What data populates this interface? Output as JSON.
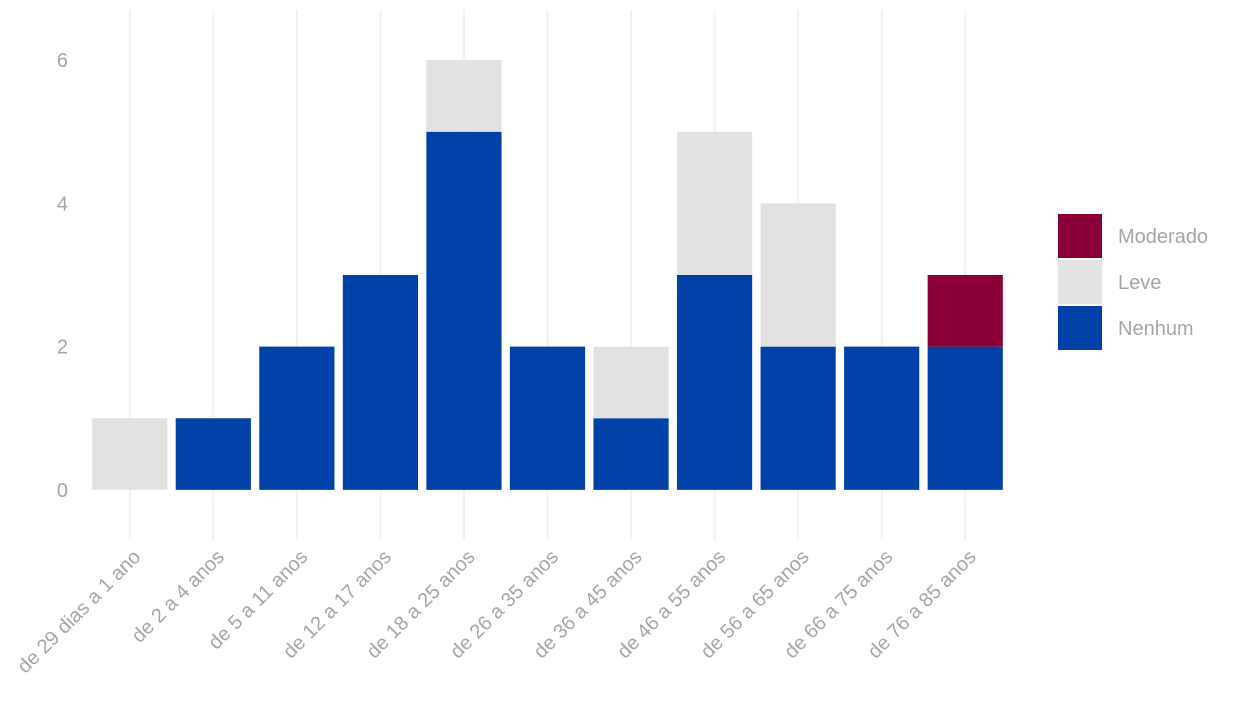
{
  "chart_data": {
    "type": "bar",
    "stacked": true,
    "categories": [
      "de 29 dias a 1 ano",
      "de 2 a 4 anos",
      "de 5 a 11 anos",
      "de 12 a 17 anos",
      "de 18 a 25 anos",
      "de 26 a 35 anos",
      "de 36 a 45 anos",
      "de 46 a 55 anos",
      "de 56 a 65 anos",
      "de 66 a 75 anos",
      "de 76 a 85 anos"
    ],
    "series": [
      {
        "name": "Nenhum",
        "color": "#0041a8",
        "values": [
          0,
          1,
          2,
          3,
          5,
          2,
          1,
          3,
          2,
          2,
          2
        ]
      },
      {
        "name": "Leve",
        "color": "#e2e2e2",
        "values": [
          1,
          0,
          0,
          0,
          1,
          0,
          1,
          2,
          2,
          0,
          0
        ]
      },
      {
        "name": "Moderado",
        "color": "#8b0039",
        "values": [
          0,
          0,
          0,
          0,
          0,
          0,
          0,
          0,
          0,
          0,
          1
        ]
      }
    ],
    "legend_order": [
      "Moderado",
      "Leve",
      "Nenhum"
    ],
    "legend_position": "right",
    "y_ticks": [
      0,
      2,
      4,
      6
    ],
    "ylim": [
      -0.7,
      6.7
    ],
    "x_tick_rotation": -45,
    "grid": {
      "x_major": true,
      "y_major": false
    },
    "title": "",
    "xlabel": "",
    "ylabel": ""
  }
}
